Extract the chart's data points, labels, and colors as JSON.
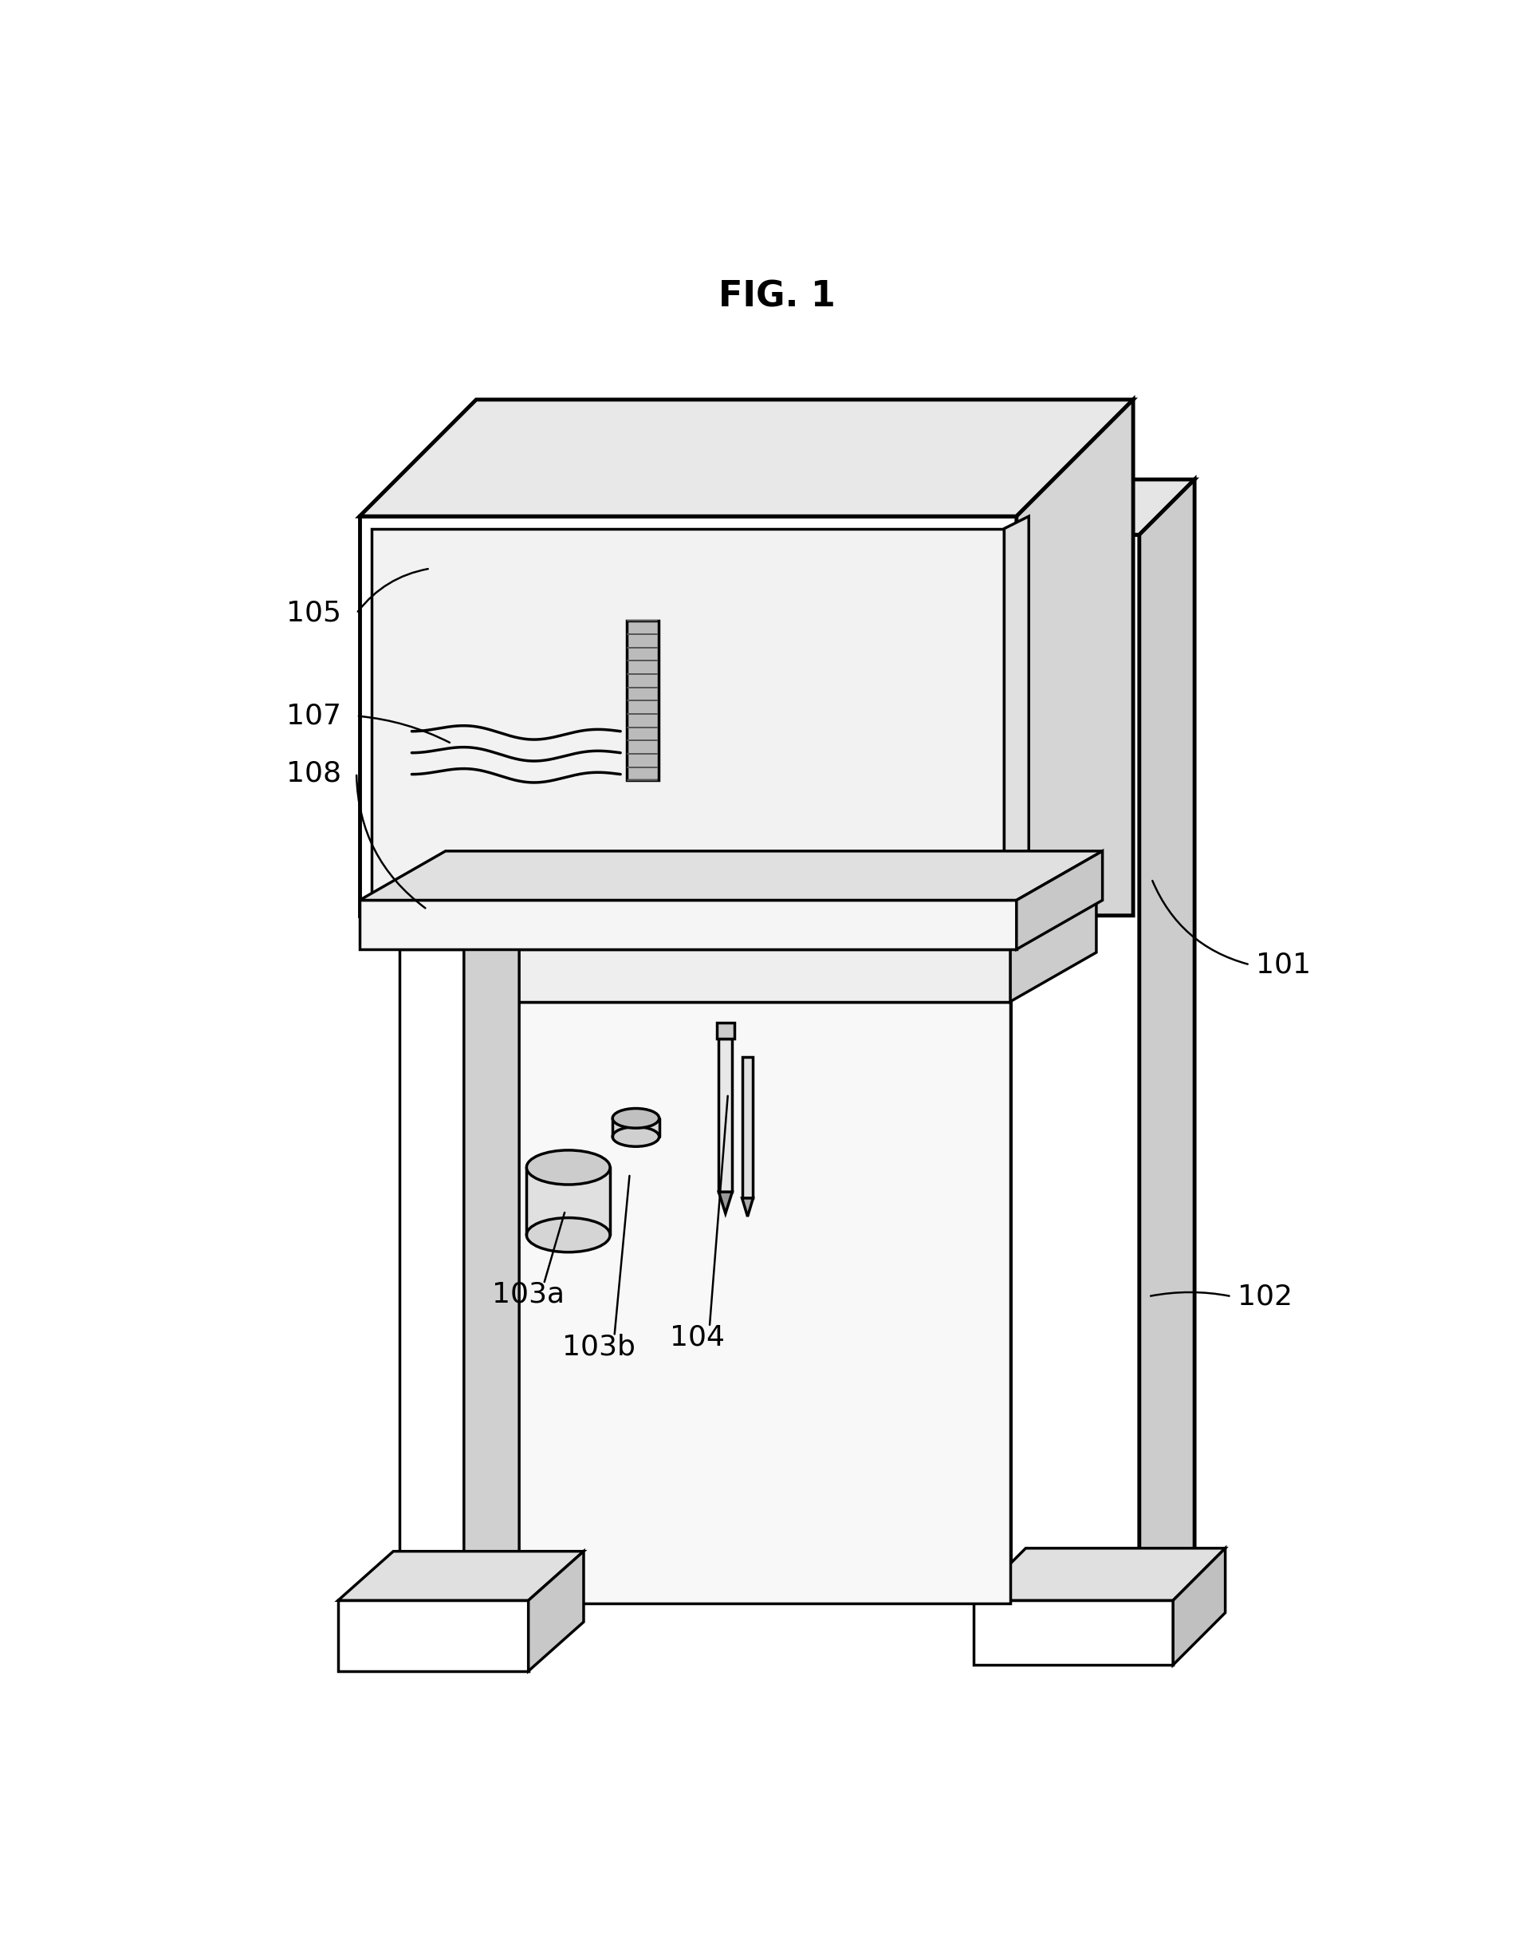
{
  "title": "FIG. 1",
  "title_fontsize": 32,
  "bg_color": "#ffffff",
  "line_color": "#000000",
  "label_fontsize": 26
}
